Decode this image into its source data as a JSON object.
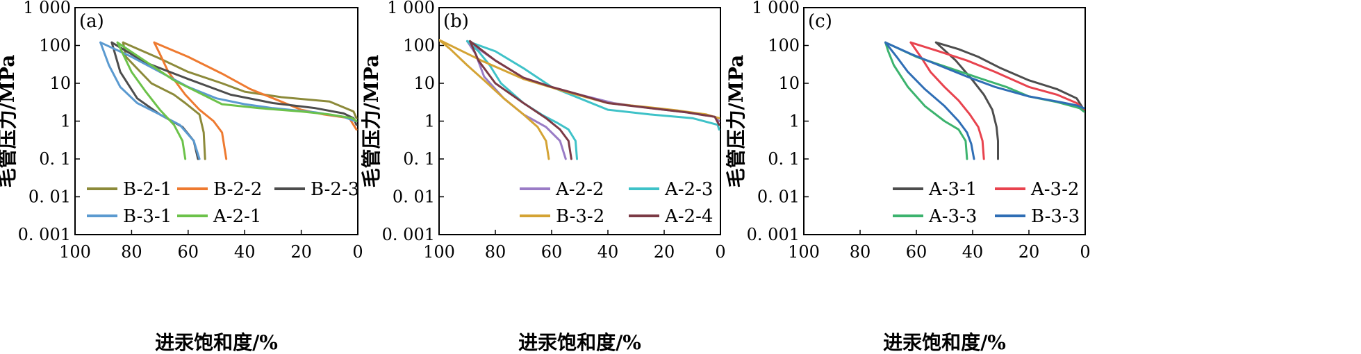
{
  "figure": {
    "xlabel": "进汞饱和度/%",
    "ylabel": "毛管压力/MPa",
    "y_ticks": [
      "1 000",
      "100",
      "10",
      "1",
      "0. 1",
      "0. 01",
      "0. 001"
    ],
    "x_ticks": [
      "100",
      "80",
      "60",
      "40",
      "20",
      "0"
    ]
  },
  "chart_data": [
    {
      "type": "line",
      "panel": "(a)",
      "xlabel": "进汞饱和度/%",
      "ylabel": "毛管压力/MPa",
      "xlim": [
        100,
        0
      ],
      "ylim": [
        0.001,
        1000
      ],
      "y_scale": "log",
      "legend_placement": "bottom",
      "series": [
        {
          "name": "B-2-1",
          "color": "#8c8a3a",
          "x": [
            54,
            54.5,
            56,
            61,
            65,
            73,
            82,
            83
          ],
          "y": [
            0.1,
            0.5,
            1.5,
            3,
            5,
            10,
            50,
            120
          ]
        },
        {
          "name": "B-2-1",
          "color": "#8c8a3a",
          "x": [
            83,
            70,
            60,
            48,
            40,
            27,
            10,
            1.5,
            0.5
          ],
          "y": [
            120,
            45,
            20,
            10,
            6,
            4.3,
            3.3,
            1.8,
            1.2
          ]
        },
        {
          "name": "B-2-2",
          "color": "#ee7a30",
          "x": [
            46.5,
            48,
            51,
            56,
            61,
            67,
            70,
            72
          ],
          "y": [
            0.1,
            0.5,
            1,
            2,
            5,
            20,
            60,
            120
          ]
        },
        {
          "name": "B-2-2",
          "color": "#ee7a30",
          "x": [
            72,
            60,
            48,
            38,
            28,
            20,
            12,
            3,
            0.5
          ],
          "y": [
            120,
            50,
            18,
            7,
            3.5,
            2,
            1.5,
            1.2,
            0.6
          ]
        },
        {
          "name": "B-2-3",
          "color": "#4d4d4d",
          "x": [
            56.5,
            58,
            62,
            70,
            78,
            84,
            87
          ],
          "y": [
            0.1,
            0.3,
            0.7,
            1.5,
            4,
            20,
            120
          ]
        },
        {
          "name": "B-2-3",
          "color": "#4d4d4d",
          "x": [
            87,
            75,
            60,
            45,
            30,
            15,
            5,
            1.5,
            0.5
          ],
          "y": [
            120,
            35,
            13,
            5,
            3,
            2.2,
            1.6,
            1.2,
            0.8
          ]
        },
        {
          "name": "B-3-1",
          "color": "#5b9ad0",
          "x": [
            56,
            58,
            63,
            70,
            78,
            84,
            88,
            91
          ],
          "y": [
            0.1,
            0.3,
            0.8,
            1.5,
            3,
            8,
            30,
            120
          ]
        },
        {
          "name": "B-3-1",
          "color": "#5b9ad0",
          "x": [
            91,
            80,
            70,
            60,
            50,
            40,
            30,
            15,
            5,
            1
          ],
          "y": [
            120,
            50,
            20,
            8,
            4,
            2.8,
            2.2,
            1.7,
            1.3,
            1
          ]
        },
        {
          "name": "A-2-1",
          "color": "#6cc24a",
          "x": [
            61,
            62,
            65,
            70,
            75,
            80,
            85
          ],
          "y": [
            0.1,
            0.3,
            0.8,
            2,
            6,
            20,
            120
          ]
        },
        {
          "name": "A-2-1",
          "color": "#6cc24a",
          "x": [
            85,
            65,
            48,
            35,
            20,
            10,
            2,
            0.5
          ],
          "y": [
            120,
            12,
            2.8,
            2.2,
            1.8,
            1.5,
            1.2,
            1
          ]
        }
      ]
    },
    {
      "type": "line",
      "panel": "(b)",
      "xlabel": "进汞饱和度/%",
      "ylabel": "毛管压力/MPa",
      "xlim": [
        100,
        0
      ],
      "ylim": [
        0.001,
        1000
      ],
      "y_scale": "log",
      "legend_placement": "bottom-right",
      "series": [
        {
          "name": "A-2-2",
          "color": "#9a7cc6",
          "x": [
            55,
            57,
            62,
            70,
            77,
            84,
            87,
            90
          ],
          "y": [
            0.1,
            0.3,
            0.7,
            1.5,
            4,
            15,
            60,
            130
          ]
        },
        {
          "name": "A-2-2",
          "color": "#9a7cc6",
          "x": [
            90,
            80,
            70,
            60,
            50,
            38,
            25,
            12,
            2,
            0.5
          ],
          "y": [
            130,
            40,
            14,
            8,
            5,
            3,
            2.2,
            1.7,
            1.3,
            1
          ]
        },
        {
          "name": "A-2-3",
          "color": "#3fc2c8",
          "x": [
            51,
            51.5,
            54,
            58,
            63,
            70,
            78,
            82,
            86,
            90
          ],
          "y": [
            0.1,
            0.3,
            0.6,
            0.9,
            1.4,
            3,
            10,
            30,
            70,
            130
          ]
        },
        {
          "name": "A-2-3",
          "color": "#3fc2c8",
          "x": [
            90,
            80,
            70,
            60,
            50,
            40,
            25,
            10,
            1,
            0.5
          ],
          "y": [
            130,
            70,
            25,
            8,
            4,
            2,
            1.5,
            1.2,
            0.8,
            0.6
          ]
        },
        {
          "name": "B-3-2",
          "color": "#d4a334",
          "x": [
            61,
            62,
            65,
            70,
            77,
            84,
            90,
            96,
            100
          ],
          "y": [
            0.1,
            0.3,
            0.7,
            1.5,
            4,
            12,
            30,
            80,
            140
          ]
        },
        {
          "name": "B-3-2",
          "color": "#d4a334",
          "x": [
            100,
            85,
            70,
            55,
            40,
            25,
            15,
            5,
            0.5
          ],
          "y": [
            140,
            40,
            13,
            6,
            3,
            2.3,
            1.9,
            1.5,
            1.2
          ]
        },
        {
          "name": "A-2-4",
          "color": "#7b3a45",
          "x": [
            53,
            54,
            57,
            62,
            70,
            80,
            86,
            89
          ],
          "y": [
            0.1,
            0.3,
            0.6,
            1.2,
            3,
            10,
            40,
            130
          ]
        },
        {
          "name": "A-2-4",
          "color": "#7b3a45",
          "x": [
            89,
            80,
            70,
            60,
            50,
            40,
            25,
            12,
            2,
            0.5
          ],
          "y": [
            130,
            40,
            14,
            8,
            5,
            3,
            2.2,
            1.7,
            1.3,
            0.8
          ]
        }
      ]
    },
    {
      "type": "line",
      "panel": "(c)",
      "xlabel": "进汞饱和度/%",
      "ylabel": "毛管压力/MPa",
      "xlim": [
        100,
        0
      ],
      "ylim": [
        0.001,
        1000
      ],
      "y_scale": "log",
      "legend_placement": "bottom-right",
      "series": [
        {
          "name": "A-3-1",
          "color": "#4d4d4d",
          "x": [
            31,
            31,
            31.5,
            33,
            36,
            40,
            46,
            53
          ],
          "y": [
            0.1,
            0.3,
            0.7,
            2,
            5,
            12,
            40,
            120
          ]
        },
        {
          "name": "A-3-1",
          "color": "#4d4d4d",
          "x": [
            53,
            45,
            38,
            30,
            20,
            10,
            3,
            0.5
          ],
          "y": [
            120,
            80,
            50,
            25,
            12,
            7,
            4,
            2
          ]
        },
        {
          "name": "A-3-2",
          "color": "#e8434e",
          "x": [
            36,
            36.5,
            38,
            41,
            45,
            50,
            55,
            58,
            62
          ],
          "y": [
            0.1,
            0.3,
            0.7,
            1.5,
            3.5,
            8,
            20,
            45,
            120
          ]
        },
        {
          "name": "A-3-2",
          "color": "#e8434e",
          "x": [
            62,
            52,
            42,
            32,
            20,
            10,
            3,
            0.5
          ],
          "y": [
            120,
            70,
            40,
            20,
            8,
            5,
            3,
            2
          ]
        },
        {
          "name": "A-3-3",
          "color": "#3cb36e",
          "x": [
            42,
            42.5,
            45,
            50,
            57,
            63,
            68,
            70,
            71
          ],
          "y": [
            0.1,
            0.3,
            0.6,
            1,
            2.5,
            8,
            30,
            70,
            120
          ]
        },
        {
          "name": "A-3-3",
          "color": "#3cb36e",
          "x": [
            71,
            60,
            48,
            38,
            28,
            20,
            10,
            2,
            0.5
          ],
          "y": [
            120,
            50,
            25,
            14,
            8,
            4.5,
            3.2,
            2.2,
            1.8
          ]
        },
        {
          "name": "B-3-3",
          "color": "#2f6eb5",
          "x": [
            39.5,
            40.5,
            42,
            45,
            50,
            57,
            63,
            67,
            71
          ],
          "y": [
            0.1,
            0.25,
            0.5,
            1,
            2.5,
            7,
            20,
            50,
            120
          ]
        },
        {
          "name": "B-3-3",
          "color": "#2f6eb5",
          "x": [
            71,
            62,
            52,
            42,
            32,
            20,
            10,
            3,
            0.5
          ],
          "y": [
            120,
            60,
            30,
            15,
            8,
            4.5,
            3.3,
            2.6,
            2.2
          ]
        }
      ]
    }
  ],
  "legends": [
    {
      "panel": "(a)",
      "items": [
        "B-2-1",
        "B-2-2",
        "B-2-3",
        "B-3-1",
        "A-2-1"
      ]
    },
    {
      "panel": "(b)",
      "items": [
        "A-2-2",
        "A-2-3",
        "B-3-2",
        "A-2-4"
      ]
    },
    {
      "panel": "(c)",
      "items": [
        "A-3-1",
        "A-3-2",
        "A-3-3",
        "B-3-3"
      ]
    }
  ]
}
